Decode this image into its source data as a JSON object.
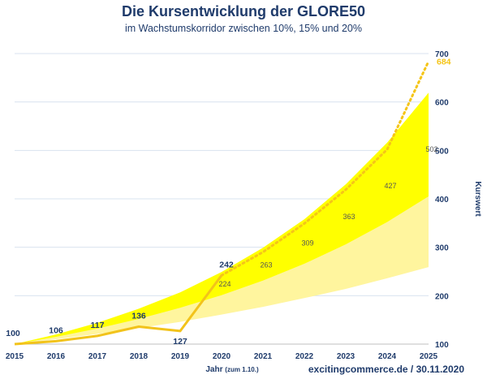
{
  "header": {
    "title": "Die Kursentwicklung der GLORE50",
    "subtitle": "im Wachstumskorridor zwischen 10%, 15% und 20%"
  },
  "footer": {
    "source": "excitingcommerce.de / 30.11.2020"
  },
  "colors": {
    "actual_line": "#f2c31b",
    "projection": "#f5c518",
    "band_20": "#ffff00",
    "band_10_15": "#fff59e",
    "axis_text": "#1f3b6b",
    "grid": "#d9e3ef"
  },
  "chart_data": {
    "type": "area",
    "xlabel": "Jahr",
    "xlabel_note": "(zum 1.10.)",
    "ylabel": "Kurswert",
    "y_axis_side": "right",
    "ylim": [
      100,
      700
    ],
    "yticks": [
      100,
      200,
      300,
      400,
      500,
      600,
      700
    ],
    "x": [
      2015,
      2016,
      2017,
      2018,
      2019,
      2020,
      2021,
      2022,
      2023,
      2024,
      2025
    ],
    "grid": true,
    "series": [
      {
        "name": "",
        "role": "actual",
        "x": [
          2015,
          2016,
          2017,
          2018,
          2019,
          2020
        ],
        "values": [
          100,
          106,
          117,
          136,
          127,
          242
        ],
        "labels": [
          "100",
          "106",
          "117",
          "136",
          "127",
          "242"
        ]
      },
      {
        "name": "",
        "role": "projection-dotted",
        "x": [
          2020,
          2021,
          2022,
          2023,
          2024,
          2025
        ],
        "values": [
          242,
          290,
          349,
          419,
          502,
          684
        ],
        "end_label": "684"
      },
      {
        "name": "",
        "role": "band-10%",
        "x": [
          2015,
          2016,
          2017,
          2018,
          2019,
          2020,
          2021,
          2022,
          2023,
          2024,
          2025
        ],
        "values": [
          100,
          110,
          121,
          133,
          146,
          161,
          177,
          195,
          214,
          236,
          259
        ]
      },
      {
        "name": "",
        "role": "band-15%",
        "x": [
          2015,
          2016,
          2017,
          2018,
          2019,
          2020,
          2021,
          2022,
          2023,
          2024,
          2025
        ],
        "values": [
          100,
          115,
          132,
          152,
          175,
          201,
          231,
          266,
          306,
          352,
          405
        ]
      },
      {
        "name": "",
        "role": "band-20%",
        "x": [
          2015,
          2016,
          2017,
          2018,
          2019,
          2020,
          2021,
          2022,
          2023,
          2024,
          2025
        ],
        "values": [
          100,
          120,
          144,
          173,
          207,
          249,
          299,
          358,
          430,
          516,
          619
        ]
      }
    ],
    "corridor_labels": {
      "x": [
        2020,
        2021,
        2022,
        2023,
        2024,
        2025
      ],
      "values": [
        224,
        263,
        309,
        363,
        427,
        502
      ],
      "labels": [
        "224",
        "263",
        "309",
        "363",
        "427",
        "502"
      ]
    }
  }
}
